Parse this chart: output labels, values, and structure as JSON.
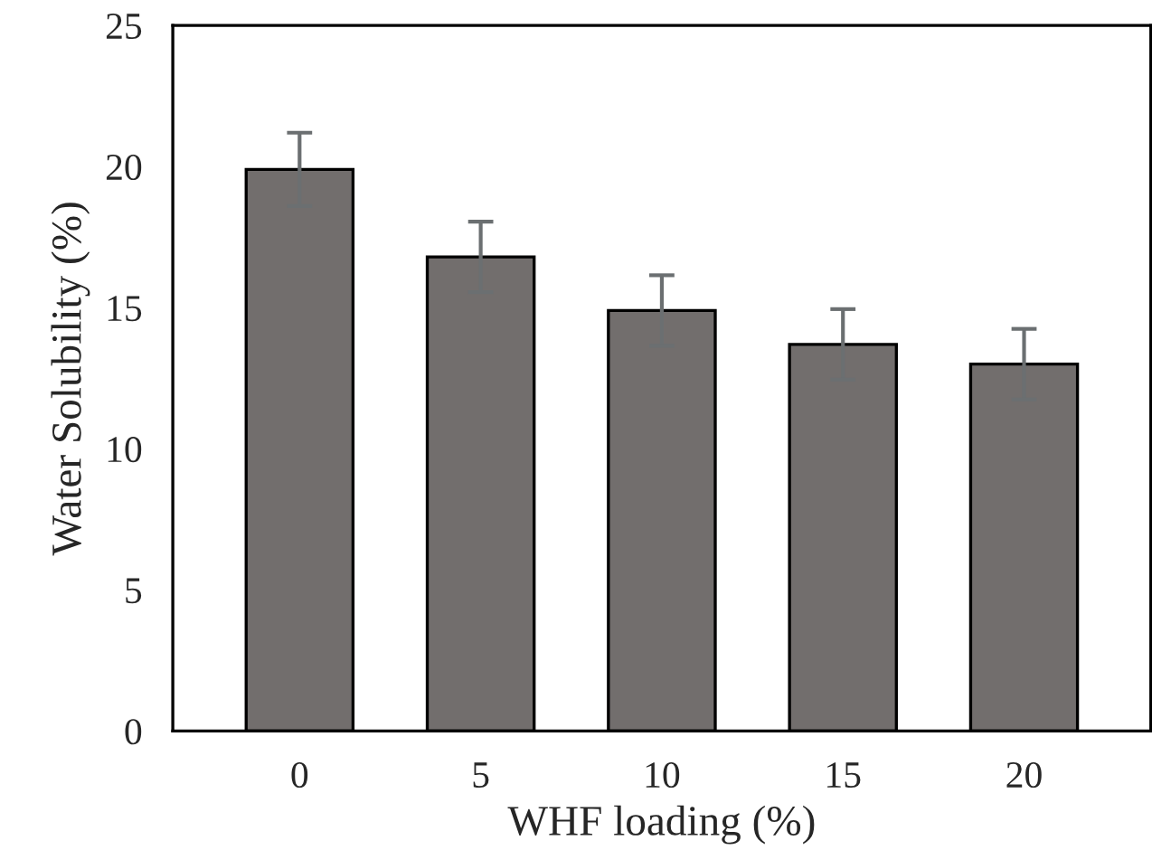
{
  "chart_data": {
    "type": "bar",
    "xlabel": "WHF loading (%)",
    "ylabel": "Water Solubility (%)",
    "categories": [
      "0",
      "5",
      "10",
      "15",
      "20"
    ],
    "values": [
      19.9,
      16.8,
      14.9,
      13.7,
      13.0
    ],
    "errors": [
      1.3,
      1.25,
      1.25,
      1.25,
      1.25
    ],
    "color": "#726e6d",
    "ylim": [
      0,
      25
    ],
    "yticks": [
      0,
      5,
      10,
      15,
      20,
      25
    ],
    "grid": false
  }
}
